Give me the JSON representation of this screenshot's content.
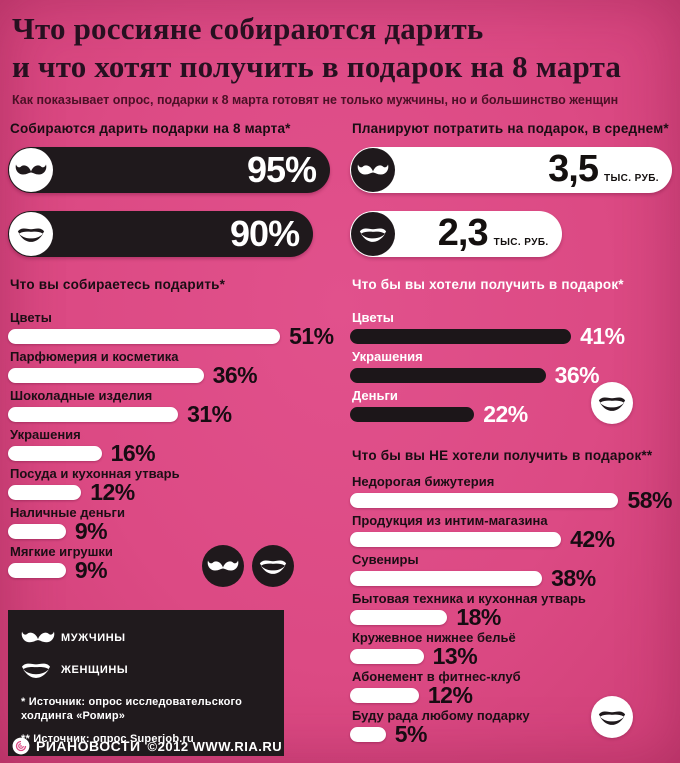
{
  "page": {
    "title_line1": "Что россияне собираются дарить",
    "title_line2": "и что хотят получить в подарок на 8 марта",
    "subtitle": "Как показывает опрос, подарки к 8 марта готовят не только мужчины, но и большинство женщин"
  },
  "colors": {
    "background": "#dc4a84",
    "bar_black": "#1f191c",
    "bar_white": "#ffffff",
    "legend_bg": "#201a1d",
    "title_text": "#271020",
    "subtitle_text": "#4b1026"
  },
  "chart_data": [
    {
      "type": "bar",
      "title": "Собираются дарить подарки на 8 марта",
      "categories": [
        "Мужчины",
        "Женщины"
      ],
      "values": [
        95,
        90
      ],
      "unit": "%"
    },
    {
      "type": "bar",
      "title": "Планируют потратить на подарок, в среднем",
      "categories": [
        "Мужчины",
        "Женщины"
      ],
      "values": [
        3.5,
        2.3
      ],
      "unit": "тыс. руб."
    },
    {
      "type": "bar",
      "title": "Что вы собираетесь подарить",
      "categories": [
        "Цветы",
        "Парфюмерия и косметика",
        "Шоколадные изделия",
        "Украшения",
        "Посуда и кухонная утварь",
        "Наличные деньги",
        "Мягкие игрушки"
      ],
      "values": [
        51,
        36,
        31,
        16,
        12,
        9,
        9
      ],
      "unit": "%"
    },
    {
      "type": "bar",
      "title": "Что бы вы хотели получить в подарок",
      "categories": [
        "Цветы",
        "Украшения",
        "Деньги"
      ],
      "values": [
        41,
        36,
        22
      ],
      "unit": "%"
    },
    {
      "type": "bar",
      "title": "Что бы вы НЕ хотели получить в подарок",
      "categories": [
        "Недорогая бижутерия",
        "Продукция из интим-магазина",
        "Сувениры",
        "Бытовая техника и кухонная утварь",
        "Кружевное нижнее бельё",
        "Абонемент в фитнес-клуб",
        "Буду рада любому подарку"
      ],
      "values": [
        58,
        42,
        38,
        18,
        13,
        12,
        5
      ],
      "unit": "%"
    }
  ],
  "give": {
    "header": "Собираются дарить подарки на 8 марта*",
    "rows": [
      {
        "icon": "mustache",
        "pct": 95,
        "display": "95%"
      },
      {
        "icon": "lips",
        "pct": 90,
        "display": "90%"
      }
    ]
  },
  "spend": {
    "header": "Планируют потратить на подарок, в среднем*",
    "rows": [
      {
        "icon": "mustache",
        "value": 3.5,
        "display": "3,5",
        "unit": "тыс. руб."
      },
      {
        "icon": "lips",
        "value": 2.3,
        "display": "2,3",
        "unit": "тыс. руб."
      }
    ]
  },
  "will_give": {
    "header": "Что вы собираетесь подарить*",
    "items": [
      {
        "label": "Цветы",
        "pct": 51,
        "display": "51%"
      },
      {
        "label": "Парфюмерия и косметика",
        "pct": 36,
        "display": "36%"
      },
      {
        "label": "Шоколадные изделия",
        "pct": 31,
        "display": "31%"
      },
      {
        "label": "Украшения",
        "pct": 16,
        "display": "16%"
      },
      {
        "label": "Посуда и кухонная утварь",
        "pct": 12,
        "display": "12%"
      },
      {
        "label": "Наличные деньги",
        "pct": 9,
        "display": "9%"
      },
      {
        "label": "Мягкие игрушки",
        "pct": 9,
        "display": "9%"
      }
    ]
  },
  "want": {
    "header": "Что бы вы хотели получить в подарок*",
    "items": [
      {
        "label": "Цветы",
        "pct": 41,
        "display": "41%"
      },
      {
        "label": "Украшения",
        "pct": 36,
        "display": "36%"
      },
      {
        "label": "Деньги",
        "pct": 22,
        "display": "22%"
      }
    ]
  },
  "not_want": {
    "header": "Что бы вы НЕ хотели получить в подарок**",
    "items": [
      {
        "label": "Недорогая бижутерия",
        "pct": 58,
        "display": "58%"
      },
      {
        "label": "Продукция из интим-магазина",
        "pct": 42,
        "display": "42%"
      },
      {
        "label": "Сувениры",
        "pct": 38,
        "display": "38%"
      },
      {
        "label": "Бытовая техника и кухонная утварь",
        "pct": 18,
        "display": "18%"
      },
      {
        "label": "Кружевное нижнее бельё",
        "pct": 13,
        "display": "13%"
      },
      {
        "label": "Абонемент в фитнес-клуб",
        "pct": 12,
        "display": "12%"
      },
      {
        "label": "Буду рада любому подарку",
        "pct": 5,
        "display": "5%"
      }
    ]
  },
  "legend": {
    "items": [
      {
        "icon": "mustache",
        "label": "МУЖЧИНЫ"
      },
      {
        "icon": "lips",
        "label": "ЖЕНЩИНЫ"
      }
    ],
    "sources": [
      "* Источник: опрос исследовательского холдинга «Ромир»",
      "** Источник: опрос Superjob.ru"
    ]
  },
  "footer": {
    "brand": "РИАНОВОСТИ",
    "copyright": "©2012 WWW.RIA.RU"
  }
}
